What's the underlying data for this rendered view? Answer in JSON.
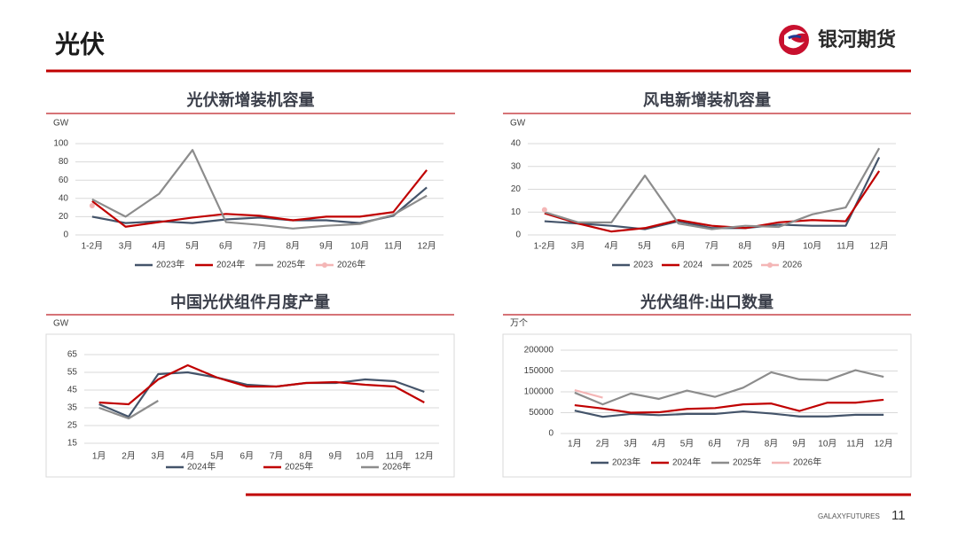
{
  "header": {
    "title": "光伏",
    "logo": "银河期货"
  },
  "footer": {
    "brand": "GALAXYFUTURES",
    "page": "11"
  },
  "chart_data": [
    {
      "type": "line",
      "title": "光伏新增装机容量",
      "y_label": "GW",
      "categories": [
        "1-2月",
        "3月",
        "4月",
        "5月",
        "6月",
        "7月",
        "8月",
        "9月",
        "10月",
        "11月",
        "12月"
      ],
      "ylim": [
        0,
        100
      ],
      "yticks": [
        0,
        20,
        40,
        60,
        80,
        100
      ],
      "grid": true,
      "legend": "bottom",
      "series": [
        {
          "name": "2023年",
          "color": "#44546a",
          "values": [
            20,
            13,
            15,
            13,
            17,
            19,
            16,
            16,
            13,
            21,
            52
          ]
        },
        {
          "name": "2024年",
          "color": "#c00000",
          "values": [
            37,
            9,
            14,
            19,
            23,
            21,
            16,
            20,
            20,
            25,
            71
          ]
        },
        {
          "name": "2025年",
          "color": "#8c8c8c",
          "values": [
            39,
            20,
            45,
            93,
            14,
            11,
            7,
            10,
            12,
            22,
            43
          ]
        },
        {
          "name": "2026年",
          "color": "#f4b6b6",
          "marker": true,
          "values": [
            32,
            null,
            null,
            null,
            null,
            null,
            null,
            null,
            null,
            null,
            null
          ]
        }
      ]
    },
    {
      "type": "line",
      "title": "风电新增装机容量",
      "y_label": "GW",
      "categories": [
        "1-2月",
        "3月",
        "4月",
        "5月",
        "6月",
        "7月",
        "8月",
        "9月",
        "10月",
        "11月",
        "12月"
      ],
      "ylim": [
        0,
        40
      ],
      "yticks": [
        0,
        10,
        20,
        30,
        40
      ],
      "grid": true,
      "legend": "bottom",
      "series": [
        {
          "name": "2023",
          "color": "#44546a",
          "values": [
            6,
            5,
            4,
            2.5,
            6,
            3,
            3,
            4.5,
            4,
            4,
            34
          ]
        },
        {
          "name": "2024",
          "color": "#c00000",
          "values": [
            9.5,
            5,
            1.5,
            3,
            6.5,
            4,
            3,
            5.5,
            6.5,
            6,
            28
          ]
        },
        {
          "name": "2025",
          "color": "#8c8c8c",
          "values": [
            10,
            5.5,
            5.5,
            26,
            5,
            2.5,
            4,
            3.5,
            9,
            12,
            38
          ]
        },
        {
          "name": "2026",
          "color": "#f4b6b6",
          "marker": true,
          "values": [
            11,
            null,
            null,
            null,
            null,
            null,
            null,
            null,
            null,
            null,
            null
          ]
        }
      ]
    },
    {
      "type": "line",
      "title": "中国光伏组件月度产量",
      "y_label": "GW",
      "categories": [
        "1月",
        "2月",
        "3月",
        "4月",
        "5月",
        "6月",
        "7月",
        "8月",
        "9月",
        "10月",
        "11月",
        "12月"
      ],
      "ylim": [
        15,
        65
      ],
      "yticks": [
        15,
        25,
        35,
        45,
        55,
        65
      ],
      "grid": true,
      "legend": "bottom",
      "series": [
        {
          "name": "2024年",
          "color": "#44546a",
          "values": [
            37,
            30,
            54,
            55,
            52,
            48,
            47,
            49,
            49,
            51,
            50,
            44
          ]
        },
        {
          "name": "2025年",
          "color": "#c00000",
          "values": [
            38,
            37,
            51,
            59,
            52,
            47,
            47,
            49,
            49.5,
            48,
            47,
            38
          ]
        },
        {
          "name": "2026年",
          "color": "#8c8c8c",
          "values": [
            35,
            29,
            39,
            null,
            null,
            null,
            null,
            null,
            null,
            null,
            null,
            null
          ]
        }
      ]
    },
    {
      "type": "line",
      "title": "光伏组件:出口数量",
      "y_label": "万个",
      "categories": [
        "1月",
        "2月",
        "3月",
        "4月",
        "5月",
        "6月",
        "7月",
        "8月",
        "9月",
        "10月",
        "11月",
        "12月"
      ],
      "ylim": [
        0,
        200000
      ],
      "yticks": [
        0,
        50000,
        100000,
        150000,
        200000
      ],
      "grid": true,
      "legend": "bottom",
      "series": [
        {
          "name": "2023年",
          "color": "#44546a",
          "values": [
            55000,
            40000,
            47000,
            44000,
            47000,
            47000,
            53000,
            48000,
            41000,
            41000,
            45000,
            45000
          ]
        },
        {
          "name": "2024年",
          "color": "#c00000",
          "values": [
            68000,
            60000,
            50000,
            51000,
            59000,
            61000,
            70000,
            72000,
            54000,
            74000,
            74000,
            81000
          ]
        },
        {
          "name": "2025年",
          "color": "#8c8c8c",
          "values": [
            98000,
            70000,
            96000,
            83000,
            103000,
            88000,
            110000,
            147000,
            130000,
            128000,
            152000,
            136000
          ]
        },
        {
          "name": "2026年",
          "color": "#f4b6b6",
          "values": [
            104000,
            86000,
            null,
            null,
            null,
            null,
            null,
            null,
            null,
            null,
            null,
            null
          ]
        }
      ]
    }
  ]
}
